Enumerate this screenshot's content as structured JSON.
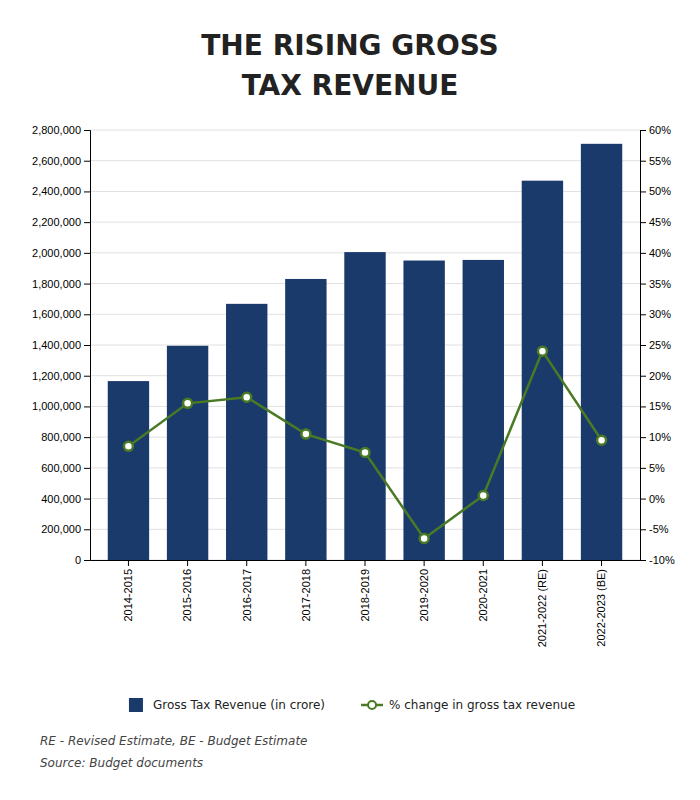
{
  "chart_data": {
    "type": "bar",
    "title": "THE RISING GROSS",
    "subtitle": "TAX REVENUE",
    "categories": [
      "2014-2015",
      "2015-2016",
      "2016-2017",
      "2017-2018",
      "2018-2019",
      "2019-2020",
      "2020-2021",
      "2021-2022 (RE)",
      "2022-2023 (BE)"
    ],
    "series": [
      {
        "name": "Gross Tax Revenue (in crore)",
        "type": "bar",
        "color": "#1a3a6b",
        "values": [
          1165000,
          1395000,
          1668000,
          1830000,
          2005000,
          1950000,
          1954000,
          2470000,
          2710000
        ]
      },
      {
        "name": "% change in gross tax revenue",
        "type": "line",
        "axis": "y2",
        "color": "#4a7a25",
        "marker": "circle",
        "values": [
          8.5,
          15.5,
          16.5,
          10.5,
          7.5,
          -6.5,
          0.5,
          24.0,
          9.5
        ]
      }
    ],
    "ylim": [
      0,
      2800000
    ],
    "yticks": [
      0,
      {
        "value": 200000,
        "label": "200,000"
      },
      {
        "value": 400000,
        "label": "400,000"
      },
      {
        "value": 600000,
        "label": "600,000"
      },
      {
        "value": 800000,
        "label": "800,000"
      },
      {
        "value": 1000000,
        "label": "1,000,000"
      },
      {
        "value": 1200000,
        "label": "1,200,000"
      },
      {
        "value": 1400000,
        "label": "1,400,000"
      },
      {
        "value": 1600000,
        "label": "1,600,000"
      },
      {
        "value": 1800000,
        "label": "1,800,000"
      },
      {
        "value": 2000000,
        "label": "2,000,000"
      },
      {
        "value": 2200000,
        "label": "2,200,000"
      },
      {
        "value": 2400000,
        "label": "2,400,000"
      },
      {
        "value": 2600000,
        "label": "2,600,000"
      },
      {
        "value": 2800000,
        "label": "2,800,000"
      }
    ],
    "y2lim": [
      -10,
      60
    ],
    "y2ticks": [
      {
        "value": -10,
        "label": "-10%"
      },
      {
        "value": -5,
        "label": "-5%"
      },
      {
        "value": 0,
        "label": "0%"
      },
      {
        "value": 5,
        "label": "5%"
      },
      {
        "value": 10,
        "label": "10%"
      },
      {
        "value": 15,
        "label": "15%"
      },
      {
        "value": 20,
        "label": "20%"
      },
      {
        "value": 25,
        "label": "25%"
      },
      {
        "value": 30,
        "label": "30%"
      },
      {
        "value": 35,
        "label": "35%"
      },
      {
        "value": 40,
        "label": "40%"
      },
      {
        "value": 45,
        "label": "45%"
      },
      {
        "value": 50,
        "label": "50%"
      },
      {
        "value": 55,
        "label": "55%"
      },
      {
        "value": 60,
        "label": "60%"
      }
    ],
    "grid": true,
    "legend": "bottom",
    "annotations": [
      "RE - Revised Estimate, BE - Budget Estimate",
      "Source: Budget documents"
    ]
  }
}
